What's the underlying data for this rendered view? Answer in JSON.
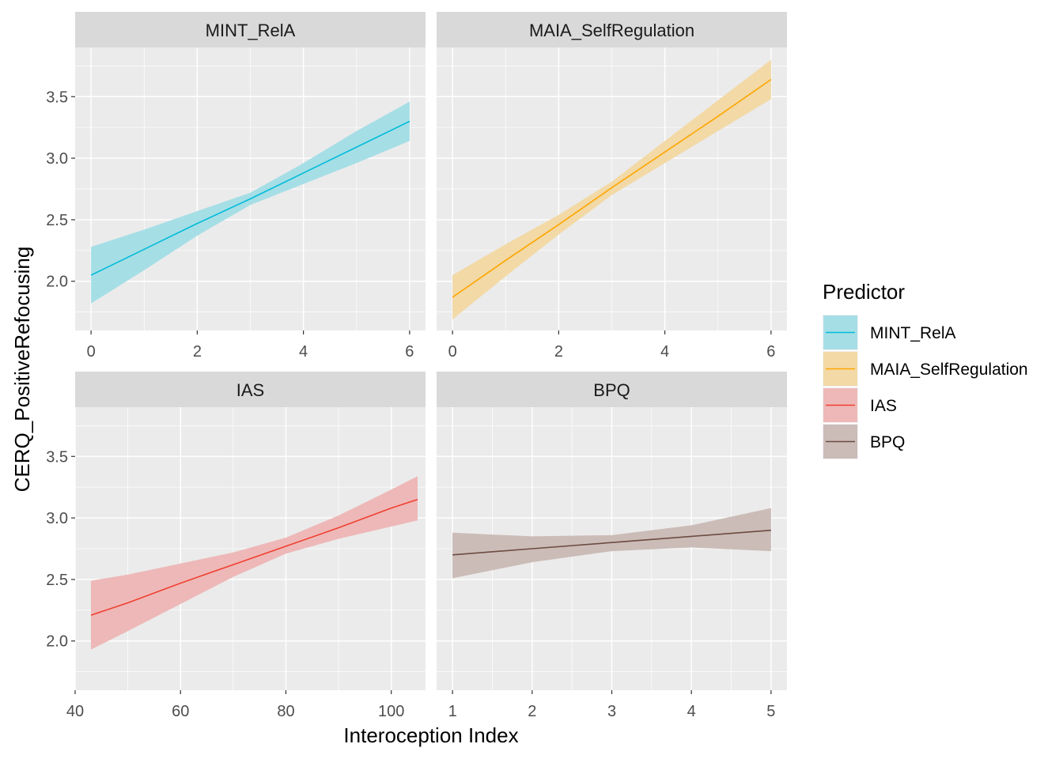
{
  "chart_data": {
    "type": "line",
    "xlabel": "Interoception Index",
    "ylabel": "CERQ_PositiveRefocusing",
    "y_ticks": [
      "2.0",
      "2.5",
      "3.0",
      "3.5"
    ],
    "ylim": [
      1.6,
      3.9
    ],
    "legend": {
      "title": "Predictor",
      "position": "right",
      "entries": [
        {
          "label": "MINT_RelA",
          "color": "#00BCD8"
        },
        {
          "label": "MAIA_SelfRegulation",
          "color": "#FFA500"
        },
        {
          "label": "IAS",
          "color": "#F04030"
        },
        {
          "label": "BPQ",
          "color": "#6D4C41"
        }
      ]
    },
    "panels": [
      {
        "title": "MINT_RelA",
        "color": "#00BCD8",
        "fill": "#A6DEE6",
        "xlim": [
          -0.3,
          6.3
        ],
        "x_ticks": [
          0,
          2,
          4,
          6
        ],
        "x_ticks_visible": true,
        "x": [
          0,
          1,
          2,
          3,
          4,
          5,
          6
        ],
        "fit": [
          2.05,
          2.26,
          2.47,
          2.67,
          2.88,
          3.09,
          3.3
        ],
        "lower": [
          1.82,
          2.09,
          2.37,
          2.62,
          2.79,
          2.96,
          3.14
        ],
        "upper": [
          2.28,
          2.42,
          2.57,
          2.72,
          2.96,
          3.22,
          3.46
        ]
      },
      {
        "title": "MAIA_SelfRegulation",
        "color": "#FFA500",
        "fill": "#F2D9A6",
        "xlim": [
          -0.3,
          6.3
        ],
        "x_ticks": [
          0,
          2,
          4,
          6
        ],
        "x_ticks_visible": true,
        "x": [
          0,
          1,
          2,
          3,
          4,
          5,
          6
        ],
        "fit": [
          1.87,
          2.17,
          2.46,
          2.76,
          3.05,
          3.34,
          3.64
        ],
        "lower": [
          1.69,
          2.04,
          2.38,
          2.7,
          2.96,
          3.22,
          3.48
        ],
        "upper": [
          2.05,
          2.3,
          2.54,
          2.81,
          3.14,
          3.47,
          3.8
        ]
      },
      {
        "title": "IAS",
        "color": "#F04030",
        "fill": "#EEB8B8",
        "xlim": [
          40,
          106.5
        ],
        "x_ticks": [
          40,
          60,
          80,
          100
        ],
        "x_ticks_visible": true,
        "x": [
          43,
          50,
          60,
          70,
          80,
          90,
          100,
          105
        ],
        "fit": [
          2.21,
          2.31,
          2.47,
          2.62,
          2.77,
          2.92,
          3.08,
          3.15
        ],
        "lower": [
          1.93,
          2.08,
          2.3,
          2.52,
          2.71,
          2.83,
          2.93,
          2.98
        ],
        "upper": [
          2.49,
          2.54,
          2.63,
          2.72,
          2.84,
          3.02,
          3.23,
          3.34
        ]
      },
      {
        "title": "BPQ",
        "color": "#6D4C41",
        "fill": "#CBBCB8",
        "xlim": [
          0.8,
          5.2
        ],
        "x_ticks": [
          1,
          2,
          3,
          4,
          5
        ],
        "x_ticks_visible": true,
        "x": [
          1,
          2,
          3,
          4,
          5
        ],
        "fit": [
          2.7,
          2.75,
          2.8,
          2.85,
          2.9
        ],
        "lower": [
          2.51,
          2.64,
          2.73,
          2.76,
          2.73
        ],
        "upper": [
          2.88,
          2.85,
          2.86,
          2.94,
          3.08
        ]
      }
    ]
  }
}
